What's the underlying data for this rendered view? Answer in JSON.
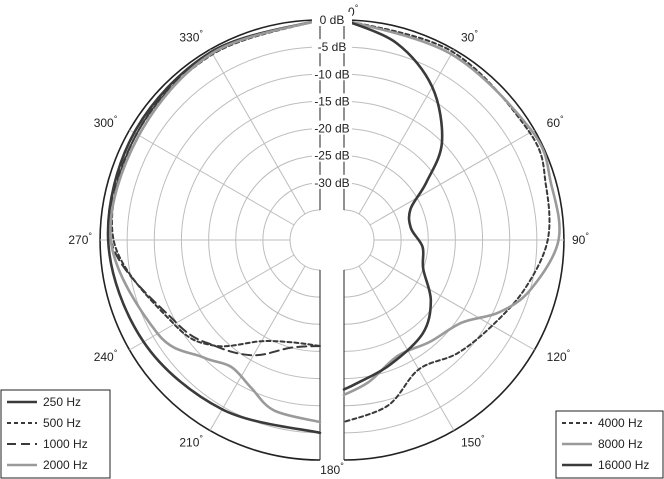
{
  "chart_data": {
    "type": "polar",
    "title": "",
    "radial_axis": {
      "unit": "dB",
      "min": -35,
      "max": 0,
      "ticks": [
        {
          "value": 0,
          "label": "0 dB"
        },
        {
          "value": -5,
          "label": "-5 dB"
        },
        {
          "value": -10,
          "label": "-10 dB"
        },
        {
          "value": -15,
          "label": "-15 dB"
        },
        {
          "value": -20,
          "label": "-20 dB"
        },
        {
          "value": -25,
          "label": "-25 dB"
        },
        {
          "value": -30,
          "label": "-30 dB"
        }
      ]
    },
    "angular_axis": {
      "direction": "clockwise",
      "zero": "top",
      "ticks": [
        {
          "value": 0,
          "label": "0"
        },
        {
          "value": 30,
          "label": "30"
        },
        {
          "value": 60,
          "label": "60"
        },
        {
          "value": 90,
          "label": "90"
        },
        {
          "value": 120,
          "label": "120"
        },
        {
          "value": 150,
          "label": "150"
        },
        {
          "value": 180,
          "label": "180"
        },
        {
          "value": 210,
          "label": "210"
        },
        {
          "value": 240,
          "label": "240"
        },
        {
          "value": 270,
          "label": "270"
        },
        {
          "value": 300,
          "label": "300"
        },
        {
          "value": 330,
          "label": "330"
        }
      ],
      "degree_symbol": "°"
    },
    "grid": true,
    "legends": [
      {
        "placement": "bottom-left",
        "series": [
          {
            "name": "250 Hz",
            "style": "solid",
            "color": "#3a3a3a"
          },
          {
            "name": "500 Hz",
            "style": "dotted",
            "color": "#3a3a3a"
          },
          {
            "name": "1000 Hz",
            "style": "dashed",
            "color": "#3a3a3a"
          },
          {
            "name": "2000 Hz",
            "style": "solid",
            "color": "#9a9a9a"
          }
        ]
      },
      {
        "placement": "bottom-right",
        "series": [
          {
            "name": "4000 Hz",
            "style": "dotted",
            "color": "#3a3a3a"
          },
          {
            "name": "8000 Hz",
            "style": "solid",
            "color": "#9a9a9a"
          },
          {
            "name": "16000 Hz",
            "style": "solid",
            "color": "#3a3a3a"
          }
        ]
      }
    ],
    "series": [
      {
        "name": "250 Hz",
        "side": "left",
        "points": [
          [
            0,
            0
          ],
          [
            330,
            -0.5
          ],
          [
            300,
            -1
          ],
          [
            270,
            -1.5
          ],
          [
            240,
            -3
          ],
          [
            210,
            -4.5
          ],
          [
            180,
            -5
          ]
        ]
      },
      {
        "name": "500 Hz",
        "side": "left",
        "points": [
          [
            0,
            0
          ],
          [
            330,
            -1
          ],
          [
            300,
            -1.5
          ],
          [
            270,
            -2.5
          ],
          [
            240,
            -9.5
          ],
          [
            225,
            -13
          ],
          [
            210,
            -19
          ],
          [
            195,
            -21
          ],
          [
            180,
            -21
          ]
        ]
      },
      {
        "name": "1000 Hz",
        "side": "left",
        "points": [
          [
            0,
            0
          ],
          [
            330,
            -0.5
          ],
          [
            300,
            -1.5
          ],
          [
            270,
            -2
          ],
          [
            240,
            -10
          ],
          [
            225,
            -13
          ],
          [
            210,
            -16
          ],
          [
            195,
            -20
          ],
          [
            180,
            -21
          ]
        ]
      },
      {
        "name": "2000 Hz",
        "side": "left",
        "points": [
          [
            0,
            0
          ],
          [
            330,
            -0.8
          ],
          [
            300,
            -2
          ],
          [
            270,
            -2
          ],
          [
            240,
            -6
          ],
          [
            225,
            -10
          ],
          [
            215,
            -12
          ],
          [
            205,
            -10.5
          ],
          [
            195,
            -8
          ],
          [
            180,
            -7
          ]
        ]
      },
      {
        "name": "4000 Hz",
        "side": "right",
        "points": [
          [
            0,
            0
          ],
          [
            30,
            -0.5
          ],
          [
            60,
            -1
          ],
          [
            75,
            -2
          ],
          [
            90,
            -3
          ],
          [
            105,
            -6
          ],
          [
            120,
            -9
          ],
          [
            135,
            -11
          ],
          [
            150,
            -13
          ],
          [
            165,
            -9
          ],
          [
            180,
            -7
          ]
        ]
      },
      {
        "name": "8000 Hz",
        "side": "right",
        "points": [
          [
            0,
            0
          ],
          [
            30,
            -1
          ],
          [
            60,
            -0.5
          ],
          [
            75,
            -1
          ],
          [
            90,
            -1
          ],
          [
            105,
            -5
          ],
          [
            115,
            -9
          ],
          [
            125,
            -14
          ],
          [
            140,
            -16
          ],
          [
            155,
            -17
          ],
          [
            170,
            -14
          ],
          [
            180,
            -12
          ]
        ]
      },
      {
        "name": "16000 Hz",
        "side": "right",
        "points": [
          [
            0,
            0
          ],
          [
            15,
            -3
          ],
          [
            30,
            -8
          ],
          [
            45,
            -15
          ],
          [
            55,
            -22
          ],
          [
            65,
            -27
          ],
          [
            80,
            -28
          ],
          [
            95,
            -26
          ],
          [
            110,
            -25
          ],
          [
            125,
            -21
          ],
          [
            140,
            -18
          ],
          [
            160,
            -16
          ],
          [
            175,
            -14
          ],
          [
            180,
            -13
          ]
        ]
      }
    ]
  }
}
